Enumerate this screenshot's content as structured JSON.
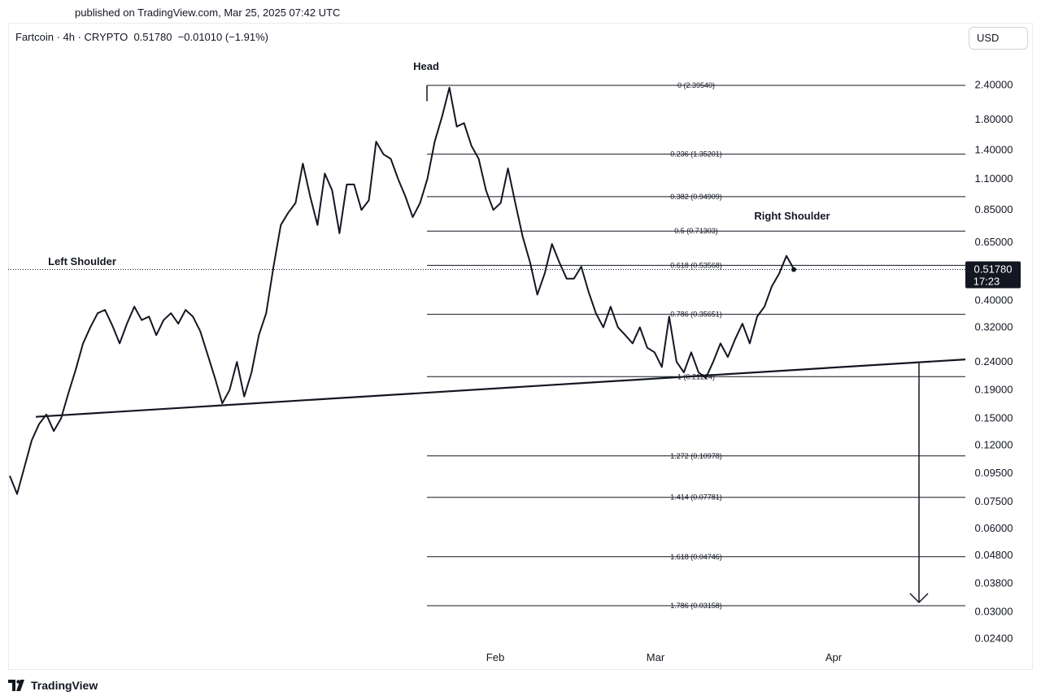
{
  "header": {
    "published": "published on TradingView.com, Mar 25, 2025 07:42 UTC",
    "symbol_line": "Fartcoin · 4h · CRYPTO  0.51780  −0.01010 (−1.91%)",
    "currency_button": "USD"
  },
  "footer": {
    "brand": "TradingView"
  },
  "chart_data": {
    "type": "line",
    "title": "",
    "scale": "log",
    "x_axis_labels": [
      "Feb",
      "Mar",
      "Apr"
    ],
    "y_axis_labels": [
      "2.40000",
      "1.80000",
      "1.40000",
      "1.10000",
      "0.85000",
      "0.65000",
      "0.40000",
      "0.32000",
      "0.24000",
      "0.19000",
      "0.15000",
      "0.12000",
      "0.09500",
      "0.07500",
      "0.06000",
      "0.04800",
      "0.03800",
      "0.03000",
      "0.02400"
    ],
    "last_price": {
      "value": "0.51780",
      "countdown": "17:23"
    },
    "annotations": [
      "Head",
      "Left Shoulder",
      "Right Shoulder"
    ],
    "fib_levels": [
      {
        "label": "0 (2.39540)",
        "price": 2.3954
      },
      {
        "label": "0.236 (1.35201)",
        "price": 1.35201
      },
      {
        "label": "0.382 (0.94909)",
        "price": 0.94909
      },
      {
        "label": "0.5 (0.71303)",
        "price": 0.71303
      },
      {
        "label": "0.618 (0.53568)",
        "price": 0.53568
      },
      {
        "label": "0.786 (0.35651)",
        "price": 0.35651
      },
      {
        "label": "1 (0.21224)",
        "price": 0.21224
      },
      {
        "label": "1.272 (0.10978)",
        "price": 0.10978
      },
      {
        "label": "1.414 (0.07781)",
        "price": 0.07781
      },
      {
        "label": "1.618 (0.04746)",
        "price": 0.04746
      },
      {
        "label": "1.786 (0.03158)",
        "price": 0.03158
      }
    ],
    "neckline_price_range": [
      0.152,
      0.245
    ],
    "price_series": [
      0.093,
      0.08,
      0.1,
      0.125,
      0.143,
      0.155,
      0.135,
      0.15,
      0.185,
      0.225,
      0.28,
      0.32,
      0.36,
      0.37,
      0.325,
      0.28,
      0.33,
      0.38,
      0.34,
      0.35,
      0.3,
      0.34,
      0.36,
      0.33,
      0.37,
      0.35,
      0.31,
      0.255,
      0.21,
      0.17,
      0.19,
      0.24,
      0.18,
      0.22,
      0.3,
      0.36,
      0.53,
      0.75,
      0.83,
      0.9,
      1.25,
      0.95,
      0.75,
      1.15,
      1.0,
      0.7,
      1.05,
      1.05,
      0.85,
      0.92,
      1.5,
      1.35,
      1.3,
      1.1,
      0.95,
      0.8,
      0.9,
      1.1,
      1.5,
      1.85,
      2.35,
      1.7,
      1.75,
      1.45,
      1.3,
      1.0,
      0.85,
      0.9,
      1.2,
      0.9,
      0.68,
      0.55,
      0.42,
      0.5,
      0.64,
      0.55,
      0.48,
      0.48,
      0.53,
      0.43,
      0.36,
      0.32,
      0.38,
      0.32,
      0.3,
      0.28,
      0.32,
      0.27,
      0.26,
      0.23,
      0.35,
      0.24,
      0.22,
      0.26,
      0.22,
      0.21,
      0.24,
      0.28,
      0.25,
      0.29,
      0.33,
      0.28,
      0.35,
      0.38,
      0.45,
      0.5,
      0.58,
      0.52
    ]
  }
}
